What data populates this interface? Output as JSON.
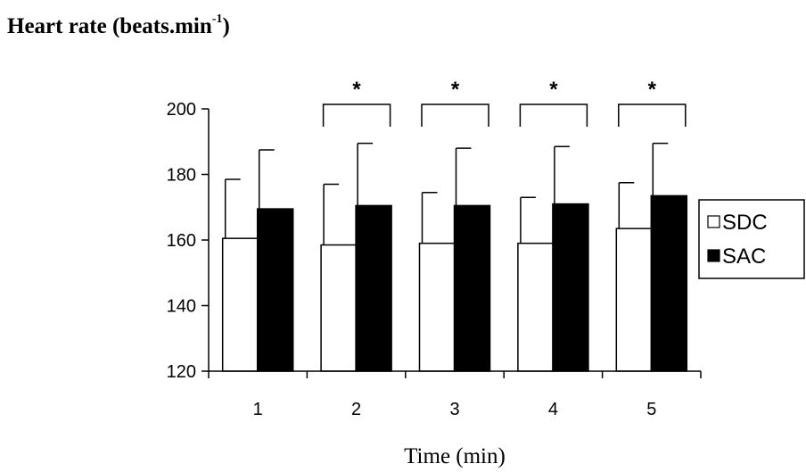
{
  "chart_data": {
    "type": "bar",
    "title": {
      "prefix": "Heart rate (beats.min",
      "superscript": "-1",
      "suffix": ")"
    },
    "xlabel": "Time (min)",
    "ylabel": "",
    "categories": [
      "1",
      "2",
      "3",
      "4",
      "5"
    ],
    "ylim": [
      120,
      200
    ],
    "yticks": [
      120,
      140,
      160,
      180,
      200
    ],
    "grid": false,
    "legend_position": "right",
    "series": [
      {
        "name": "SDC",
        "fill": "#ffffff",
        "values": [
          160.5,
          158.5,
          159,
          159,
          163.5
        ],
        "error_upper": [
          178.5,
          177,
          174.5,
          173,
          177.5
        ]
      },
      {
        "name": "SAC",
        "fill": "#000000",
        "values": [
          169.5,
          170.5,
          170.5,
          171,
          173.5
        ],
        "error_upper": [
          187.5,
          189.5,
          188,
          188.5,
          189.5
        ]
      }
    ],
    "significance": {
      "marker": "*",
      "categories": [
        "2",
        "3",
        "4",
        "5"
      ]
    }
  }
}
